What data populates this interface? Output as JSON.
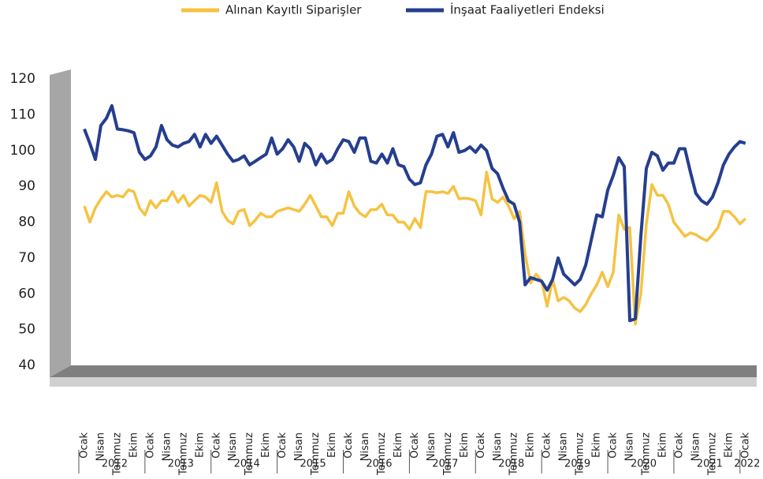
{
  "chart_data": {
    "type": "line",
    "categories": [
      "Ocak",
      null,
      null,
      "Nisan",
      null,
      null,
      "Temmuz",
      null,
      null,
      "Ekim",
      null,
      null,
      "Ocak",
      null,
      null,
      "Nisan",
      null,
      null,
      "Temmuz",
      null,
      null,
      "Ekim",
      null,
      null,
      "Ocak",
      null,
      null,
      "Nisan",
      null,
      null,
      "Temmuz",
      null,
      null,
      "Ekim",
      null,
      null,
      "Ocak",
      null,
      null,
      "Nisan",
      null,
      null,
      "Temmuz",
      null,
      null,
      "Ekim",
      null,
      null,
      "Ocak",
      null,
      null,
      "Nisan",
      null,
      null,
      "Temmuz",
      null,
      null,
      "Ekim",
      null,
      null,
      "Ocak",
      null,
      null,
      "Nisan",
      null,
      null,
      "Temmuz",
      null,
      null,
      "Ekim",
      null,
      null,
      "Ocak",
      null,
      null,
      "Nisan",
      null,
      null,
      "Temmuz",
      null,
      null,
      "Ekim",
      null,
      null,
      "Ocak",
      null,
      null,
      "Nisan",
      null,
      null,
      "Temmuz",
      null,
      null,
      "Ekim",
      null,
      null,
      "Ocak",
      null,
      null,
      "Nisan",
      null,
      null,
      "Temmuz",
      null,
      null,
      "Ekim",
      null,
      null,
      "Ocak",
      null,
      null,
      "Nisan",
      null,
      null,
      "Temmuz",
      null,
      null,
      "Ekim",
      null,
      null,
      "Ocak"
    ],
    "years": [
      "2012",
      "2013",
      "2014",
      "2015",
      "2016",
      "2017",
      "2018",
      "2019",
      "2020",
      "2021",
      "2022"
    ],
    "series": [
      {
        "name": "Alınan Kayıtlı Siparişler",
        "color": "#f5c342",
        "values": [
          84.5,
          80,
          84,
          86.5,
          88.5,
          87,
          87.5,
          87,
          89,
          88.5,
          84,
          82,
          86,
          84,
          86,
          86,
          88.5,
          85.5,
          87.5,
          84.5,
          86,
          87.5,
          87,
          85.5,
          91,
          83,
          80.5,
          79.5,
          83,
          83.5,
          79,
          80.5,
          82.5,
          81.5,
          81.5,
          83,
          83.5,
          84,
          83.5,
          83,
          85,
          87.5,
          84.5,
          81.5,
          81.5,
          79,
          82.5,
          82.5,
          88.5,
          84.5,
          82.5,
          81.5,
          83.5,
          83.5,
          85,
          82,
          82,
          80,
          80,
          78,
          81,
          78.5,
          88.5,
          88.5,
          88.2,
          88.5,
          88,
          90,
          86.5,
          86.7,
          86.5,
          86,
          82,
          94,
          86.5,
          85.5,
          87,
          84.5,
          81,
          83,
          71,
          63,
          65.5,
          63.5,
          56.5,
          64,
          58,
          59,
          58,
          56,
          55,
          57,
          60,
          62.5,
          66,
          62,
          66,
          82,
          78,
          78.5,
          51.5,
          60,
          79.5,
          90.5,
          87.5,
          87.5,
          85,
          80,
          78,
          76,
          77,
          76.5,
          75.5,
          74.8,
          76.5,
          78.5,
          83,
          83,
          81.5,
          79.5,
          81
        ]
      },
      {
        "name": "İnşaat Faaliyetleri Endeksi",
        "color": "#253e8f",
        "values": [
          106,
          102,
          97.5,
          107,
          109,
          112.5,
          106,
          105.8,
          105.5,
          105,
          99.5,
          97.5,
          98.5,
          101,
          107,
          103,
          101.5,
          101,
          102,
          102.5,
          104.5,
          101,
          104.5,
          102,
          104,
          101.5,
          99,
          97,
          97.5,
          98.5,
          96,
          97,
          98,
          99,
          103.5,
          99,
          100.5,
          103,
          101,
          97,
          102,
          100.5,
          96,
          99,
          96.5,
          97.5,
          100.5,
          103,
          102.5,
          99.5,
          103.5,
          103.5,
          97,
          96.5,
          99,
          96.5,
          100.5,
          96,
          95.5,
          92,
          90.5,
          91,
          96,
          99,
          104,
          104.5,
          101,
          105,
          99.5,
          100,
          101,
          99.5,
          101.5,
          100,
          95,
          93.5,
          89.5,
          86,
          85,
          80,
          62.5,
          64.5,
          64,
          63.5,
          61,
          64,
          70,
          65.5,
          64,
          62.5,
          64,
          68,
          75,
          82,
          81.5,
          89,
          93,
          98,
          95.5,
          52.5,
          53,
          76,
          95,
          99.5,
          98.5,
          94.5,
          96.5,
          96.5,
          100.5,
          100.5,
          94,
          88,
          86,
          85,
          87,
          91,
          96,
          99,
          101,
          102.5,
          102
        ]
      }
    ],
    "ylim": [
      40,
      120
    ],
    "yticks": [
      40,
      50,
      60,
      70,
      80,
      90,
      100,
      110,
      120
    ],
    "legend": "top"
  }
}
